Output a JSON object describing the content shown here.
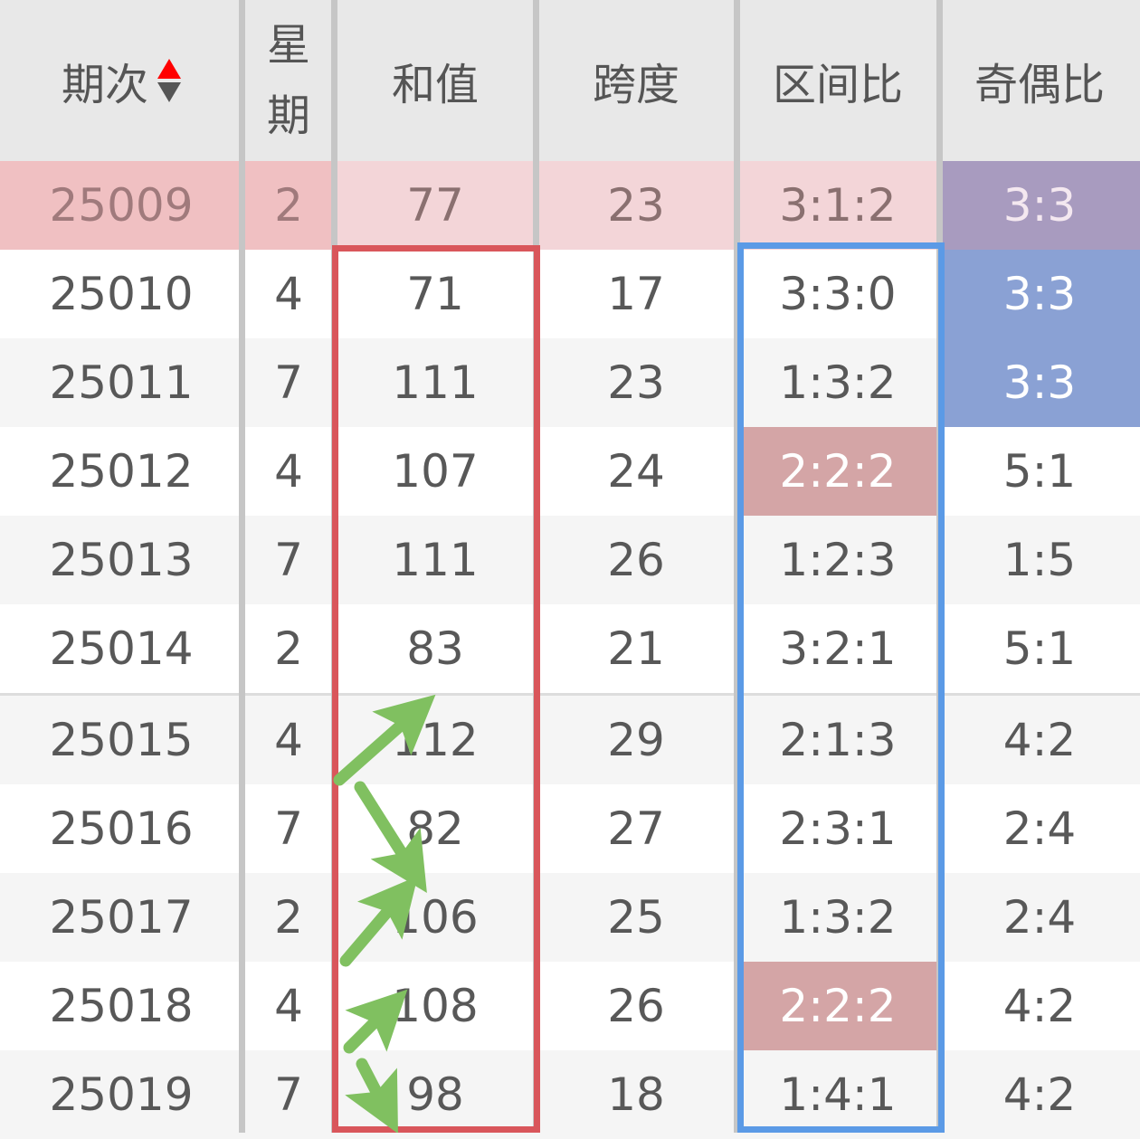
{
  "headers": [
    "期次",
    "星期",
    "和值",
    "跨度",
    "区间比",
    "奇偶比"
  ],
  "sort_icon": "sort-up-down-icon",
  "rows": [
    {
      "period": "25009",
      "weekday": "2",
      "sum": "77",
      "span": "23",
      "zone": "3:1:2",
      "oddeven": "3:3"
    },
    {
      "period": "25010",
      "weekday": "4",
      "sum": "71",
      "span": "17",
      "zone": "3:3:0",
      "oddeven": "3:3"
    },
    {
      "period": "25011",
      "weekday": "7",
      "sum": "111",
      "span": "23",
      "zone": "1:3:2",
      "oddeven": "3:3"
    },
    {
      "period": "25012",
      "weekday": "4",
      "sum": "107",
      "span": "24",
      "zone": "2:2:2",
      "oddeven": "5:1"
    },
    {
      "period": "25013",
      "weekday": "7",
      "sum": "111",
      "span": "26",
      "zone": "1:2:3",
      "oddeven": "1:5"
    },
    {
      "period": "25014",
      "weekday": "2",
      "sum": "83",
      "span": "21",
      "zone": "3:2:1",
      "oddeven": "5:1"
    },
    {
      "period": "25015",
      "weekday": "4",
      "sum": "112",
      "span": "29",
      "zone": "2:1:3",
      "oddeven": "4:2"
    },
    {
      "period": "25016",
      "weekday": "7",
      "sum": "82",
      "span": "27",
      "zone": "2:3:1",
      "oddeven": "2:4"
    },
    {
      "period": "25017",
      "weekday": "2",
      "sum": "106",
      "span": "25",
      "zone": "1:3:2",
      "oddeven": "2:4"
    },
    {
      "period": "25018",
      "weekday": "4",
      "sum": "108",
      "span": "26",
      "zone": "2:2:2",
      "oddeven": "4:2"
    },
    {
      "period": "25019",
      "weekday": "7",
      "sum": "98",
      "span": "18",
      "zone": "1:4:1",
      "oddeven": "4:2"
    }
  ],
  "colors": {
    "highlight_row": "#f0c0c2",
    "purple": "#a89bbf",
    "blue": "#8aa1d4",
    "rose": "#d4a5a6",
    "red_box": "#d9565b",
    "blue_box": "#5b9ae6",
    "arrows": "#80c060"
  }
}
